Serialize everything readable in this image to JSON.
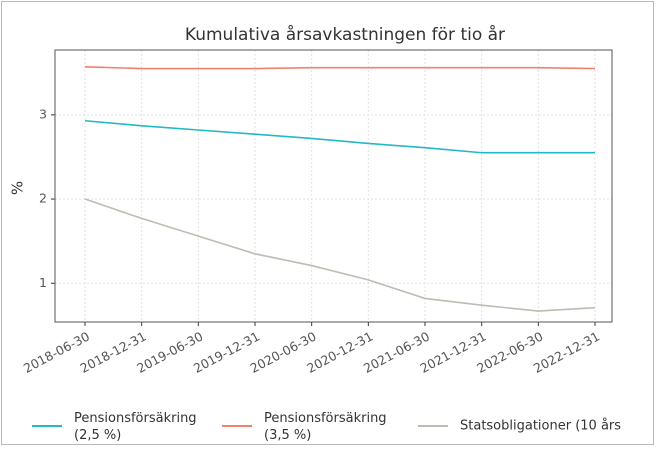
{
  "chart_data": {
    "type": "line",
    "title": "Kumulativa årsavkastningen för tio år",
    "ylabel": "%",
    "categories": [
      "2018-06-30",
      "2018-12-31",
      "2019-06-30",
      "2019-12-31",
      "2020-06-30",
      "2020-12-31",
      "2021-06-30",
      "2021-12-31",
      "2022-06-30",
      "2022-12-31"
    ],
    "series": [
      {
        "name": "Pensionsförsäkring (2,5 %)",
        "color": "#22b8c8",
        "values": [
          2.93,
          2.87,
          2.82,
          2.77,
          2.72,
          2.66,
          2.61,
          2.55,
          2.55,
          2.55
        ]
      },
      {
        "name": "Pensionsförsäkring (3,5 %)",
        "color": "#f08070",
        "values": [
          3.57,
          3.55,
          3.55,
          3.55,
          3.56,
          3.56,
          3.56,
          3.56,
          3.56,
          3.55
        ]
      },
      {
        "name": "Statsobligationer (10 års",
        "color": "#c0bcb4",
        "values": [
          2.0,
          1.77,
          1.56,
          1.35,
          1.21,
          1.04,
          0.82,
          0.74,
          0.67,
          0.71
        ]
      }
    ],
    "ylim": [
      0.54,
      3.77
    ],
    "yticks": [
      1,
      2,
      3
    ],
    "grid": true,
    "legend": "bottom"
  }
}
